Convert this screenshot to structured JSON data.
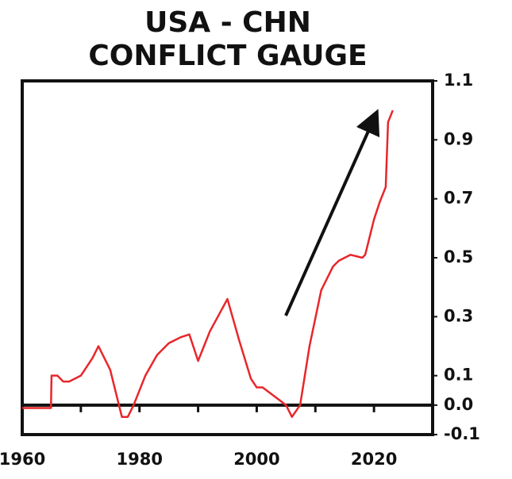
{
  "chart_data": {
    "type": "line",
    "title": [
      "USA - CHN",
      "CONFLICT GAUGE"
    ],
    "x": [
      1960,
      1964.9,
      1965,
      1966,
      1967,
      1968,
      1970,
      1972,
      1973,
      1975,
      1977,
      1978,
      1979,
      1981,
      1983,
      1985,
      1987,
      1988.5,
      1990,
      1992,
      1995,
      1997,
      1999,
      2000,
      2001,
      2003,
      2005,
      2006,
      2007.4,
      2009,
      2011,
      2013,
      2014,
      2016,
      2018,
      2018.5,
      2020,
      2021,
      2022,
      2022.4,
      2023.2
    ],
    "series": [
      {
        "color": "#e8262b",
        "values": [
          -0.01,
          -0.01,
          0.1,
          0.1,
          0.08,
          0.08,
          0.1,
          0.16,
          0.2,
          0.12,
          -0.04,
          -0.04,
          0.0,
          0.1,
          0.17,
          0.21,
          0.23,
          0.24,
          0.15,
          0.25,
          0.36,
          0.22,
          0.09,
          0.06,
          0.06,
          0.03,
          0.0,
          -0.04,
          0.0,
          0.2,
          0.39,
          0.47,
          0.49,
          0.51,
          0.5,
          0.51,
          0.63,
          0.69,
          0.74,
          0.96,
          1.0
        ]
      }
    ],
    "xlim": [
      1960,
      2030
    ],
    "xticks": [
      1960,
      1980,
      2000,
      2020
    ],
    "minor_xticks": [
      1970,
      1980,
      1990,
      2000,
      2010,
      2020
    ],
    "ylim": [
      -0.1,
      1.1
    ],
    "yticks": [
      1.1,
      0.9,
      0.7,
      0.5,
      0.3,
      0.1,
      {
        "value": 0,
        "label": "0.0"
      },
      -0.1
    ]
  }
}
